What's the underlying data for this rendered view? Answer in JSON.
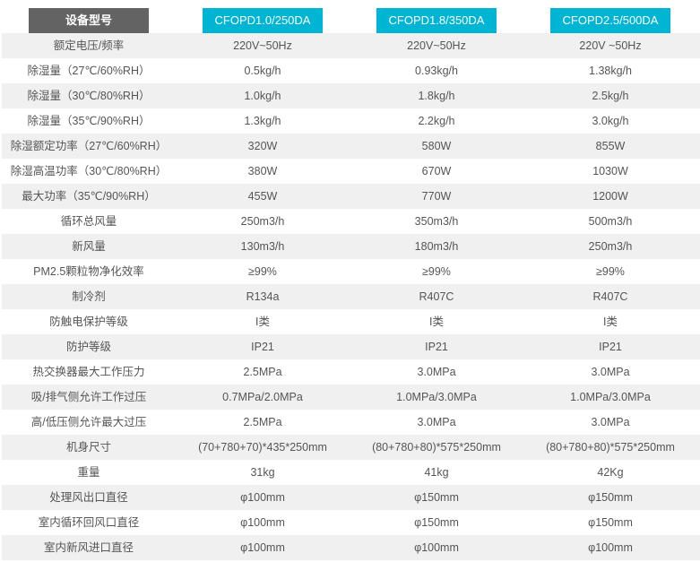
{
  "header": {
    "label": "设备型号",
    "models": [
      "CFOPD1.0/250DA",
      "CFOPD1.8/350DA",
      "CFOPD2.5/500DA"
    ]
  },
  "rows": [
    {
      "label": "额定电压/频率",
      "values": [
        "220V~50Hz",
        "220V~50Hz",
        "220V ~50Hz"
      ]
    },
    {
      "label": "除湿量（27℃/60%RH）",
      "values": [
        "0.5kg/h",
        "0.93kg/h",
        "1.38kg/h"
      ]
    },
    {
      "label": "除湿量（30℃/80%RH）",
      "values": [
        "1.0kg/h",
        "1.8kg/h",
        "2.5kg/h"
      ]
    },
    {
      "label": "除湿量（35℃/90%RH）",
      "values": [
        "1.3kg/h",
        "2.2kg/h",
        "3.0kg/h"
      ]
    },
    {
      "label": "除湿额定功率（27℃/60%RH）",
      "values": [
        "320W",
        "580W",
        "855W"
      ]
    },
    {
      "label": "除湿高温功率（30℃/80%RH）",
      "values": [
        "380W",
        "670W",
        "1030W"
      ]
    },
    {
      "label": "最大功率（35℃/90%RH）",
      "values": [
        "455W",
        "770W",
        "1200W"
      ]
    },
    {
      "label": "循环总风量",
      "values": [
        "250m3/h",
        "350m3/h",
        "500m3/h"
      ]
    },
    {
      "label": "新风量",
      "values": [
        "130m3/h",
        "180m3/h",
        "250m3/h"
      ]
    },
    {
      "label": "PM2.5颗粒物净化效率",
      "values": [
        "≥99%",
        "≥99%",
        "≥99%"
      ]
    },
    {
      "label": "制冷剂",
      "values": [
        "R134a",
        "R407C",
        "R407C"
      ]
    },
    {
      "label": "防触电保护等级",
      "values": [
        "I类",
        "I类",
        "I类"
      ]
    },
    {
      "label": "防护等级",
      "values": [
        "IP21",
        "IP21",
        "IP21"
      ]
    },
    {
      "label": "热交换器最大工作压力",
      "values": [
        "2.5MPa",
        "3.0MPa",
        "3.0MPa"
      ]
    },
    {
      "label": "吸/排气侧允许工作过压",
      "values": [
        "0.7MPa/2.0MPa",
        "1.0MPa/3.0MPa",
        "1.0MPa/3.0MPa"
      ]
    },
    {
      "label": "高/低压侧允许最大过压",
      "values": [
        "2.5MPa",
        "3.0MPa",
        "3.0MPa"
      ]
    },
    {
      "label": "机身尺寸",
      "values": [
        "(70+780+70)*435*250mm",
        "(80+780+80)*575*250mm",
        "(80+780+80)*575*250mm"
      ]
    },
    {
      "label": "重量",
      "values": [
        "31kg",
        "41kg",
        "42Kg"
      ]
    },
    {
      "label": "处理风出口直径",
      "values": [
        "φ100mm",
        "φ150mm",
        "φ150mm"
      ]
    },
    {
      "label": "室内循环回风口直径",
      "values": [
        "φ100mm",
        "φ150mm",
        "φ150mm"
      ]
    },
    {
      "label": "室内新风进口直径",
      "values": [
        "φ100mm",
        "φ100mm",
        "φ100mm"
      ]
    }
  ],
  "colors": {
    "header_label_bg": "#636363",
    "model_bg": "#00b4d3",
    "stripe": "#f0f0f0",
    "text": "#555555"
  }
}
